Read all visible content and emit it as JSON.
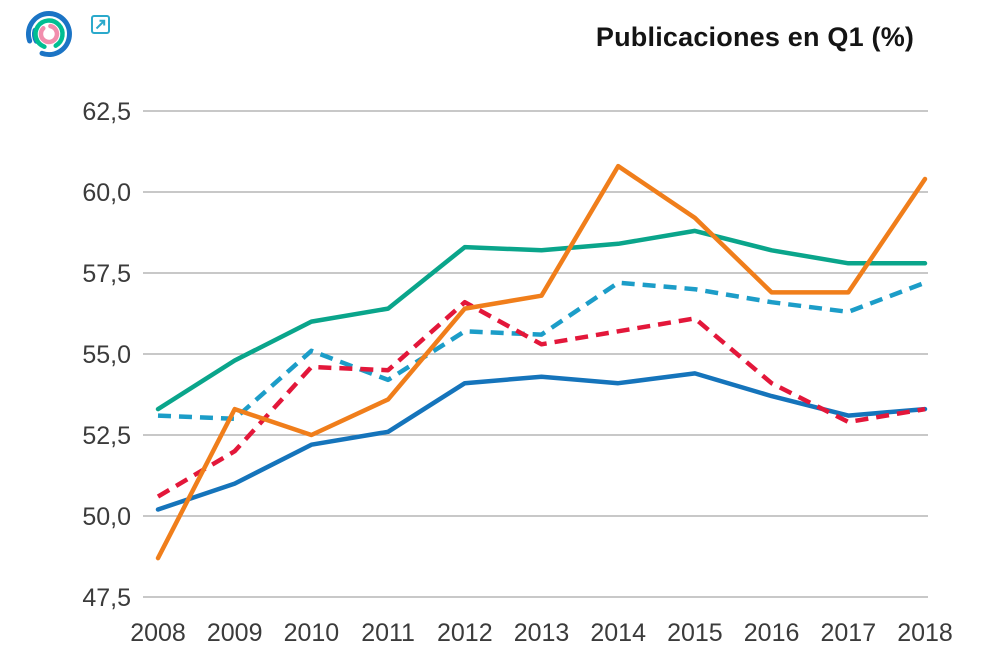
{
  "header": {
    "logo": {
      "name": "concentric-arcs-logo",
      "outer_arc_color": "#1b74c5",
      "middle_arc_color": "#00be92",
      "inner_arc_color": "#f18ead"
    },
    "external_link_icon_color": "#2ba9cb"
  },
  "chart_data": {
    "type": "line",
    "title": "Publicaciones en Q1 (%)",
    "title_color": "#141414",
    "x": [
      2008,
      2009,
      2010,
      2011,
      2012,
      2013,
      2014,
      2015,
      2016,
      2017,
      2018
    ],
    "x_tick_labels": [
      "2008",
      "2009",
      "2010",
      "2011",
      "2012",
      "2013",
      "2014",
      "2015",
      "2016",
      "2017",
      "2018"
    ],
    "yticks": [
      47.5,
      50.0,
      52.5,
      55.0,
      57.5,
      60.0,
      62.5
    ],
    "y_tick_labels": [
      "47,5",
      "50,0",
      "52,5",
      "55,0",
      "57,5",
      "60,0",
      "62,5"
    ],
    "ylim": [
      47.5,
      62.5
    ],
    "decimal_separator": ",",
    "grid": "horizontal",
    "grid_color": "#a8a8a8",
    "tick_label_color": "#3b3b3b",
    "legend": "none",
    "series": [
      {
        "name": "teal-solid-line",
        "style": "solid",
        "color": "#0aa58b",
        "values": [
          53.3,
          54.8,
          56.0,
          56.4,
          58.3,
          58.2,
          58.4,
          58.8,
          58.2,
          57.8,
          57.8
        ]
      },
      {
        "name": "cyan-dashed-line",
        "style": "dashed",
        "color": "#1c9dc8",
        "values": [
          53.1,
          53.0,
          55.1,
          54.2,
          55.7,
          55.6,
          57.2,
          57.0,
          56.6,
          56.3,
          57.2
        ]
      },
      {
        "name": "blue-solid-line",
        "style": "solid",
        "color": "#1574bb",
        "values": [
          50.2,
          51.0,
          52.2,
          52.6,
          54.1,
          54.3,
          54.1,
          54.4,
          53.7,
          53.1,
          53.3
        ]
      },
      {
        "name": "red-dashed-line",
        "style": "dashed",
        "color": "#e3173a",
        "values": [
          50.6,
          52.0,
          54.6,
          54.5,
          56.6,
          55.3,
          55.7,
          56.1,
          54.1,
          52.9,
          53.3
        ]
      },
      {
        "name": "orange-solid-line",
        "style": "solid",
        "color": "#f07e1b",
        "values": [
          48.7,
          53.3,
          52.5,
          53.6,
          56.4,
          56.8,
          60.8,
          59.2,
          56.9,
          56.9,
          60.4
        ]
      }
    ]
  }
}
